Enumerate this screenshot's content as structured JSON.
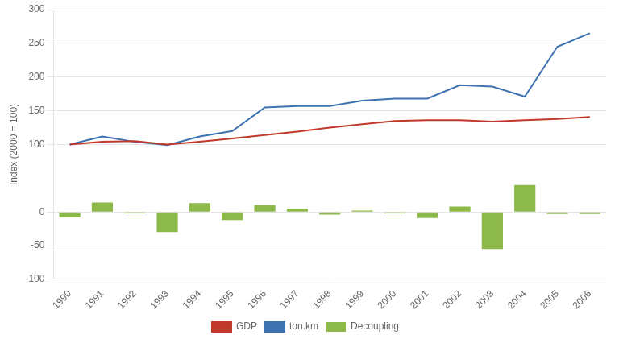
{
  "chart_data": {
    "type": "bar",
    "categories": [
      "1990",
      "1991",
      "1992",
      "1993",
      "1994",
      "1995",
      "1996",
      "1997",
      "1998",
      "1999",
      "2000",
      "2001",
      "2002",
      "2003",
      "2004",
      "2005",
      "2006"
    ],
    "series": [
      {
        "name": "Decoupling",
        "type": "bar",
        "color": "#8db84a",
        "values": [
          -8,
          14,
          -2,
          -30,
          13,
          -12,
          10,
          5,
          -4,
          2,
          -2,
          -9,
          8,
          -55,
          40,
          -3,
          -3
        ]
      },
      {
        "name": "GDP",
        "type": "line",
        "color": "#c0392b",
        "values": [
          100,
          104,
          105,
          100,
          104,
          109,
          114,
          119,
          125,
          130,
          135,
          136,
          136,
          134,
          136,
          138,
          141
        ]
      },
      {
        "name": "ton.km",
        "type": "line",
        "color": "#3d72b0",
        "values": [
          100,
          112,
          104,
          99,
          112,
          120,
          155,
          157,
          157,
          165,
          168,
          168,
          188,
          186,
          171,
          245,
          265
        ]
      }
    ],
    "y_label": "Index (2000 = 100)",
    "ylim": [
      -100,
      300
    ],
    "yticks": [
      -100,
      -50,
      0,
      100,
      150,
      200,
      250,
      300
    ],
    "grid": true,
    "legend": "bottom"
  }
}
